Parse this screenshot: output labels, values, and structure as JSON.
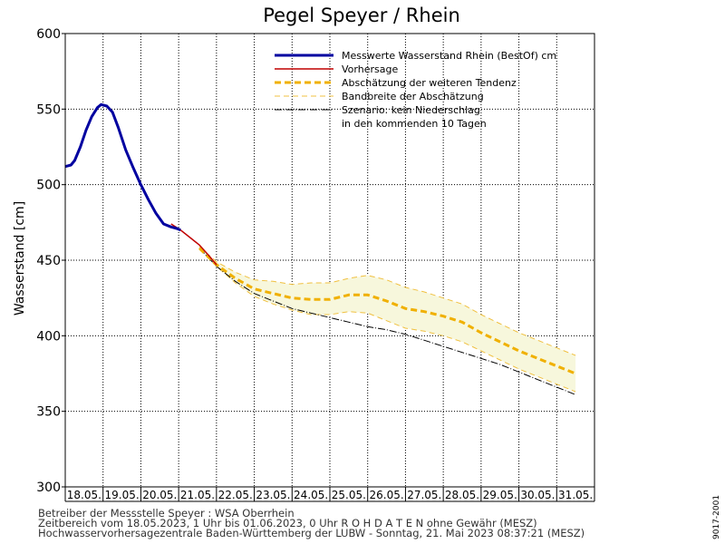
{
  "chart_data": {
    "type": "line",
    "title": "Pegel Speyer / Rhein",
    "ylabel": "Wasserstand [cm]",
    "ylim": [
      300,
      600
    ],
    "yticks": [
      300,
      350,
      400,
      450,
      500,
      550,
      600
    ],
    "xlim": [
      0,
      14
    ],
    "xtick_labels": [
      "18.05.",
      "19.05.",
      "20.05.",
      "21.05.",
      "22.05.",
      "23.05.",
      "24.05.",
      "25.05.",
      "26.05.",
      "27.05.",
      "28.05.",
      "29.05.",
      "30.05.",
      "31.05."
    ],
    "grid": true,
    "legend_position": "top-right",
    "legend": [
      {
        "key": "measured",
        "label": "Messwerte Wasserstand Rhein (BestOf)   cm"
      },
      {
        "key": "forecast",
        "label": "Vorhersage"
      },
      {
        "key": "trend",
        "label": "Abschätzung der weiteren Tendenz"
      },
      {
        "key": "band",
        "label": "Bandbreite der Abschätzung"
      },
      {
        "key": "scenario",
        "label": "Szenario: kein Niederschlag"
      },
      {
        "key": "scenario_line2",
        "label": "in den kommenden 10 Tagen"
      }
    ],
    "colors": {
      "measured": "#0000a0",
      "forecast": "#c00000",
      "trend": "#f0b000",
      "band_line": "#f0c040",
      "band_fill": "#f7f7dc",
      "scenario": "#000000",
      "grid": "#000000"
    },
    "series": [
      {
        "key": "measured",
        "name": "Messwerte Wasserstand Rhein (BestOf)",
        "x": [
          0,
          0.15,
          0.25,
          0.4,
          0.55,
          0.7,
          0.85,
          0.95,
          1.1,
          1.25,
          1.4,
          1.6,
          1.8,
          2.0,
          2.2,
          2.4,
          2.6,
          2.8,
          2.95,
          3.05
        ],
        "y": [
          512,
          513,
          516,
          525,
          536,
          545,
          551,
          553,
          552,
          548,
          538,
          523,
          511,
          500,
          490,
          481,
          474,
          472,
          471,
          470
        ]
      },
      {
        "key": "forecast",
        "name": "Vorhersage",
        "x": [
          2.8,
          3.05,
          3.3,
          3.55,
          3.8,
          4.0
        ],
        "y": [
          474,
          470,
          465,
          460,
          453,
          447
        ]
      },
      {
        "key": "trend",
        "name": "Abschätzung der weiteren Tendenz",
        "x": [
          3.55,
          4.0,
          4.5,
          5.0,
          5.5,
          6.0,
          6.5,
          7.0,
          7.5,
          8.0,
          8.5,
          9.0,
          9.5,
          10.0,
          10.5,
          11.0,
          11.5,
          12.0,
          12.5,
          13.0,
          13.5
        ],
        "y": [
          458,
          447,
          438,
          431,
          428,
          425,
          424,
          424,
          427,
          427,
          423,
          418,
          416,
          413,
          409,
          402,
          396,
          390,
          385,
          380,
          375
        ]
      },
      {
        "key": "band_upper",
        "name": "Bandbreite der Abschätzung",
        "x": [
          3.55,
          4.0,
          4.5,
          5.0,
          5.5,
          6.0,
          6.5,
          7.0,
          7.5,
          8.0,
          8.5,
          9.0,
          9.5,
          10.0,
          10.5,
          11.0,
          11.5,
          12.0,
          12.5,
          13.0,
          13.5
        ],
        "y": [
          459,
          449,
          442,
          437,
          436,
          434,
          435,
          435,
          438,
          440,
          437,
          432,
          429,
          425,
          421,
          414,
          408,
          402,
          397,
          392,
          387
        ]
      },
      {
        "key": "band_lower",
        "name": "Bandbreite der Abschätzung",
        "x": [
          3.55,
          4.0,
          4.5,
          5.0,
          5.5,
          6.0,
          6.5,
          7.0,
          7.5,
          8.0,
          8.5,
          9.0,
          9.5,
          10.0,
          10.5,
          11.0,
          11.5,
          12.0,
          12.5,
          13.0,
          13.5
        ],
        "y": [
          457,
          446,
          435,
          426,
          421,
          417,
          414,
          414,
          416,
          415,
          410,
          405,
          403,
          400,
          396,
          390,
          384,
          378,
          373,
          368,
          363
        ]
      },
      {
        "key": "scenario",
        "name": "Szenario: kein Niederschlag",
        "x": [
          3.55,
          4.0,
          4.5,
          5.0,
          5.5,
          6.0,
          6.5,
          7.0,
          7.5,
          8.0,
          8.5,
          9.0,
          9.5,
          10.0,
          10.5,
          11.0,
          11.5,
          12.0,
          12.5,
          13.0,
          13.5
        ],
        "y": [
          458,
          446,
          436,
          428,
          423,
          418,
          415,
          412,
          409,
          406,
          404,
          401,
          397,
          393,
          389,
          385,
          381,
          376,
          371,
          366,
          361
        ]
      }
    ]
  },
  "footer": {
    "line1": "Betreiber der Messstelle Speyer : WSA Oberrhein",
    "line2": "Zeitbereich vom 18.05.2023, 1 Uhr bis 01.06.2023, 0 Uhr    R O H D A T E N  ohne Gewähr (MESZ)",
    "line3": "Hochwasservorhersagezentrale Baden-Württemberg der LUBW - Sonntag, 21. Mai 2023 08:37:21 (MESZ)",
    "code": "9017-2001"
  }
}
